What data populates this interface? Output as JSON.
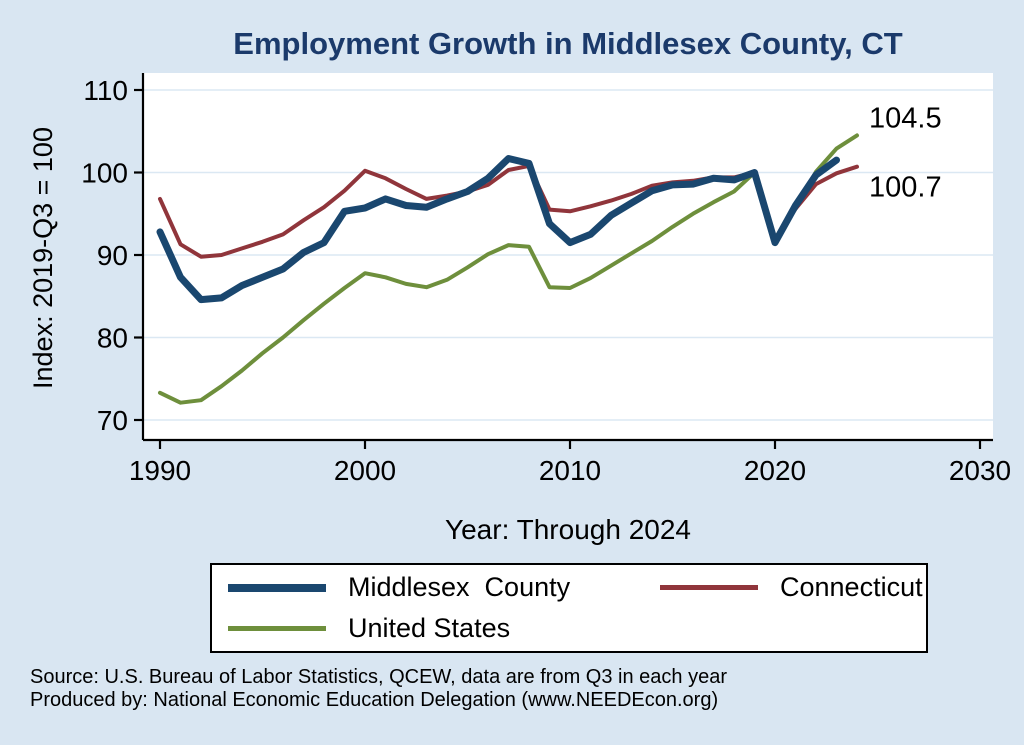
{
  "chart_data": {
    "type": "line",
    "title": "Employment Growth in Middlesex County, CT",
    "xlabel": "Year: Through 2024",
    "ylabel": "Index: 2019-Q3 = 100",
    "xticks": [
      1990,
      2000,
      2010,
      2020,
      2030
    ],
    "yticks": [
      70,
      80,
      90,
      100,
      110
    ],
    "xlim": [
      1989,
      2031
    ],
    "ylim": [
      68,
      112
    ],
    "grid": "horizontal",
    "legend_position": "bottom",
    "x": [
      1990,
      1991,
      1992,
      1993,
      1994,
      1995,
      1996,
      1997,
      1998,
      1999,
      2000,
      2001,
      2002,
      2003,
      2004,
      2005,
      2006,
      2007,
      2008,
      2009,
      2010,
      2011,
      2012,
      2013,
      2014,
      2015,
      2016,
      2017,
      2018,
      2019,
      2020,
      2021,
      2022,
      2023,
      2024
    ],
    "series": [
      {
        "name": "Middlesex  County",
        "color": "#1a476f",
        "width": 7,
        "values": [
          92.8,
          87.3,
          84.6,
          84.8,
          86.3,
          87.3,
          88.3,
          90.3,
          91.5,
          95.3,
          95.7,
          96.8,
          96.0,
          95.8,
          96.8,
          97.7,
          99.3,
          101.7,
          101.1,
          93.8,
          91.5,
          92.5,
          94.8,
          96.3,
          97.8,
          98.5,
          98.6,
          99.3,
          99.1,
          100.0,
          91.5,
          96.0,
          99.7,
          101.5,
          null
        ]
      },
      {
        "name": "Connecticut",
        "color": "#90353b",
        "width": 4,
        "values": [
          96.8,
          91.3,
          89.8,
          90.0,
          90.8,
          91.6,
          92.5,
          94.2,
          95.8,
          97.8,
          100.2,
          99.3,
          98.0,
          96.8,
          97.2,
          97.7,
          98.5,
          100.3,
          100.8,
          95.5,
          95.3,
          95.9,
          96.6,
          97.4,
          98.4,
          98.8,
          99.0,
          99.4,
          99.4,
          100.0,
          91.8,
          95.6,
          98.6,
          99.9,
          100.7
        ]
      },
      {
        "name": "United States",
        "color": "#6e8f3c",
        "width": 4,
        "values": [
          73.3,
          72.1,
          72.4,
          74.1,
          76.0,
          78.1,
          80.0,
          82.1,
          84.1,
          86.0,
          87.8,
          87.3,
          86.5,
          86.1,
          87.0,
          88.5,
          90.1,
          91.2,
          91.0,
          86.1,
          86.0,
          87.2,
          88.7,
          90.2,
          91.7,
          93.4,
          95.0,
          96.4,
          97.7,
          100.0,
          92.0,
          95.6,
          100.1,
          102.9,
          104.5
        ]
      }
    ],
    "end_labels": [
      {
        "series": "United States",
        "text": "104.5",
        "color": "#000000"
      },
      {
        "series": "Connecticut",
        "text": "100.7",
        "color": "#000000"
      }
    ]
  },
  "footer": {
    "line1": "Source: U.S. Bureau of Labor Statistics, QCEW, data are from Q3 in each year",
    "line2": "Produced by: National Economic Education Delegation (www.NEEDEcon.org)"
  },
  "colors": {
    "background": "#d9e6f2",
    "plot_background": "#ffffff",
    "grid": "#dbe8f3",
    "title": "#1b3a6b",
    "axis": "#000000"
  }
}
